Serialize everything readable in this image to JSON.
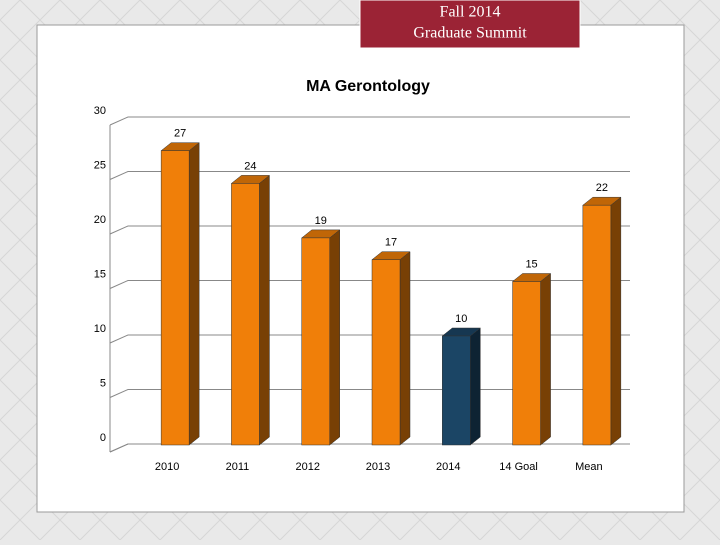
{
  "header": [
    "Fall 2014",
    "Graduate Summit"
  ],
  "chart_data": {
    "type": "bar3d",
    "title": "MA Gerontology",
    "categories": [
      "2010",
      "2011",
      "2012",
      "2013",
      "2014",
      "14 Goal",
      "Mean"
    ],
    "values": [
      27,
      24,
      19,
      17,
      10,
      15,
      22
    ],
    "colors": [
      "#f07f09",
      "#f07f09",
      "#f07f09",
      "#f07f09",
      "#1b4565",
      "#f07f09",
      "#f07f09"
    ],
    "ylim": [
      0,
      30
    ],
    "yticks": [
      0,
      5,
      10,
      15,
      20,
      25,
      30
    ],
    "grid": true
  }
}
